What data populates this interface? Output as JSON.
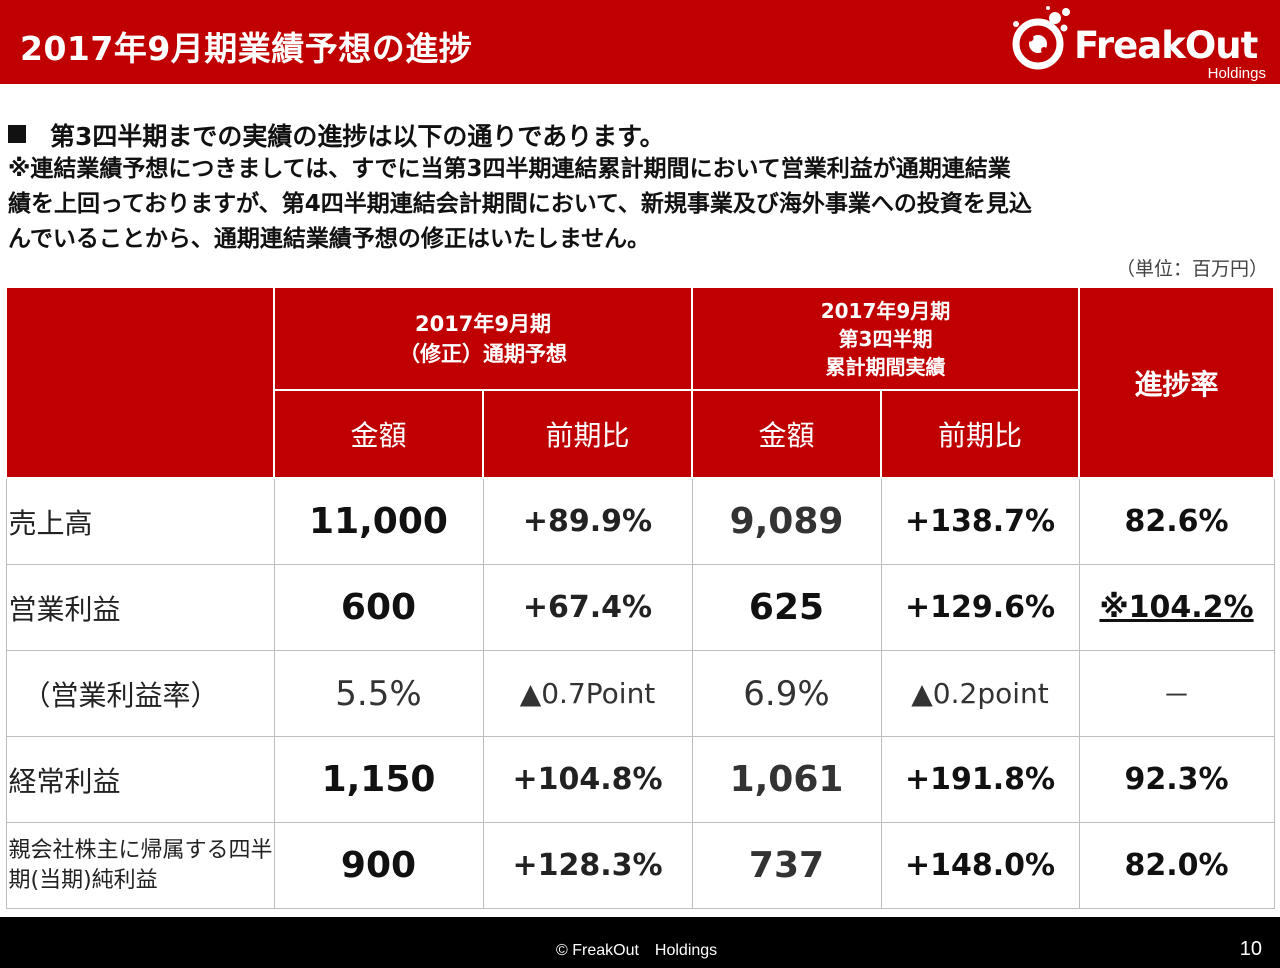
{
  "header": {
    "title": "2017年9月期業績予想の進捗",
    "logo_name": "FreakOut",
    "logo_sub": "Holdings",
    "colors": {
      "brand_red": "#c00000"
    }
  },
  "body": {
    "bullet": "第3四半期までの実績の進捗は以下の通りであります。",
    "note_lines": [
      "※連結業績予想につきましては、すでに当第3四半期連結累計期間において営業利益が通期連結業",
      "績を上回っておりますが、第4四半期連結会計期間において、新規事業及び海外事業への投資を見込",
      "んでいることから、通期連結業績予想の修正はいたしません。"
    ],
    "unit": "（単位：百万円）"
  },
  "table": {
    "group1": [
      "2017年9月期",
      "（修正）通期予想"
    ],
    "group2": [
      "2017年9月期",
      "第3四半期",
      "累計期間実績"
    ],
    "rate_header": "進捗率",
    "sub_amount": "金額",
    "sub_yoy": "前期比",
    "rows": [
      {
        "label": "売上高",
        "forecast": "11,000",
        "forecast_yoy": "+89.9%",
        "actual": "9,089",
        "actual_yoy": "+138.7%",
        "rate": "82.6%"
      },
      {
        "label": "営業利益",
        "forecast": "600",
        "forecast_yoy": "+67.4%",
        "actual": "625",
        "actual_yoy": "+129.6%",
        "rate": "※104.2%"
      },
      {
        "label": "（営業利益率）",
        "forecast": "5.5%",
        "forecast_yoy": "▲0.7Point",
        "actual": "6.9%",
        "actual_yoy": "▲0.2point",
        "rate": "－"
      },
      {
        "label": "経常利益",
        "forecast": "1,150",
        "forecast_yoy": "+104.8%",
        "actual": "1,061",
        "actual_yoy": "+191.8%",
        "rate": "92.3%"
      },
      {
        "label_lines": [
          "親会社株主に帰属する四半",
          "期(当期)純利益"
        ],
        "forecast": "900",
        "forecast_yoy": "+128.3%",
        "actual": "737",
        "actual_yoy": "+148.0%",
        "rate": "82.0%"
      }
    ]
  },
  "footer": {
    "copyright": "© FreakOut　Holdings",
    "page": "10"
  }
}
